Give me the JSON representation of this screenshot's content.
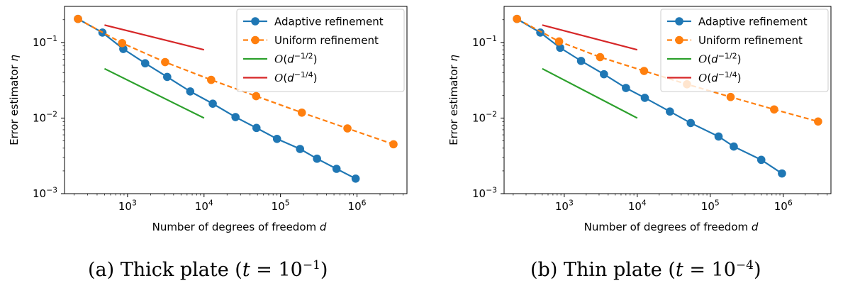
{
  "chart_data": [
    {
      "type": "line",
      "xscale": "log",
      "yscale": "log",
      "xlim": [
        150,
        4500000
      ],
      "ylim": [
        0.001,
        0.3
      ],
      "xlabel": "Number of degrees of freedom d",
      "ylabel": "Error estimator η",
      "xticks": [
        "10^3",
        "10^4",
        "10^5",
        "10^6"
      ],
      "yticks": [
        "10^-3",
        "10^-2",
        "10^-1"
      ],
      "legend": "top-right",
      "caption": "(a) Thick plate (t = 10^-1)",
      "series": [
        {
          "name": "Adaptive refinement",
          "color": "#1f77b4",
          "style": "solid",
          "marker": "circle",
          "x": [
            225,
            470,
            880,
            1700,
            3300,
            6600,
            13000,
            25800,
            48500,
            90000,
            180000,
            300000,
            540000,
            960000
          ],
          "y": [
            0.205,
            0.135,
            0.082,
            0.053,
            0.035,
            0.0225,
            0.0155,
            0.0103,
            0.0074,
            0.0053,
            0.0039,
            0.0029,
            0.00213,
            0.00158
          ]
        },
        {
          "name": "Uniform refinement",
          "color": "#ff7f0e",
          "style": "dashed",
          "marker": "circle",
          "x": [
            225,
            850,
            3100,
            12400,
            48000,
            190000,
            750000,
            3000000
          ],
          "y": [
            0.205,
            0.098,
            0.055,
            0.032,
            0.0195,
            0.0118,
            0.0073,
            0.0045
          ]
        },
        {
          "name": "O(d^-1/2)",
          "color": "#2ca02c",
          "style": "solid",
          "marker": "none",
          "x": [
            500,
            10000
          ],
          "y": [
            0.045,
            0.01
          ]
        },
        {
          "name": "O(d^-1/4)",
          "color": "#d62728",
          "style": "solid",
          "marker": "none",
          "x": [
            500,
            10000
          ],
          "y": [
            0.17,
            0.08
          ]
        }
      ]
    },
    {
      "type": "line",
      "xscale": "log",
      "yscale": "log",
      "xlim": [
        150,
        4500000
      ],
      "ylim": [
        0.001,
        0.3
      ],
      "xlabel": "Number of degrees of freedom d",
      "ylabel": "Error estimator η",
      "xticks": [
        "10^3",
        "10^4",
        "10^5",
        "10^6"
      ],
      "yticks": [
        "10^-3",
        "10^-2",
        "10^-1"
      ],
      "legend": "top-right",
      "caption": "(b) Thin plate (t = 10^-4)",
      "series": [
        {
          "name": "Adaptive refinement",
          "color": "#1f77b4",
          "style": "solid",
          "marker": "circle",
          "x": [
            225,
            470,
            880,
            1700,
            3500,
            7000,
            12700,
            28000,
            54000,
            130000,
            210000,
            500000,
            960000
          ],
          "y": [
            0.205,
            0.135,
            0.085,
            0.057,
            0.038,
            0.025,
            0.0185,
            0.0122,
            0.0086,
            0.0057,
            0.0042,
            0.0028,
            0.00185
          ]
        },
        {
          "name": "Uniform refinement",
          "color": "#ff7f0e",
          "style": "dashed",
          "marker": "circle",
          "x": [
            225,
            850,
            3100,
            12400,
            48000,
            190000,
            750000,
            3000000
          ],
          "y": [
            0.205,
            0.103,
            0.064,
            0.042,
            0.028,
            0.019,
            0.013,
            0.009
          ]
        },
        {
          "name": "O(d^-1/2)",
          "color": "#2ca02c",
          "style": "solid",
          "marker": "none",
          "x": [
            500,
            10000
          ],
          "y": [
            0.045,
            0.01
          ]
        },
        {
          "name": "O(d^-1/4)",
          "color": "#d62728",
          "style": "solid",
          "marker": "none",
          "x": [
            500,
            10000
          ],
          "y": [
            0.17,
            0.08
          ]
        }
      ]
    }
  ],
  "legend_labels": {
    "adaptive": "Adaptive refinement",
    "uniform": "Uniform refinement",
    "order_half": "O(d^-1/2)",
    "order_quarter": "O(d^-1/4)"
  },
  "captions": {
    "a_prefix": "(a) Thick plate (",
    "a_var": "t",
    "a_eq": " = 10",
    "a_exp": "−1",
    "a_suffix": ")",
    "b_prefix": "(b) Thin plate (",
    "b_var": "t",
    "b_eq": " = 10",
    "b_exp": "−4",
    "b_suffix": ")"
  }
}
